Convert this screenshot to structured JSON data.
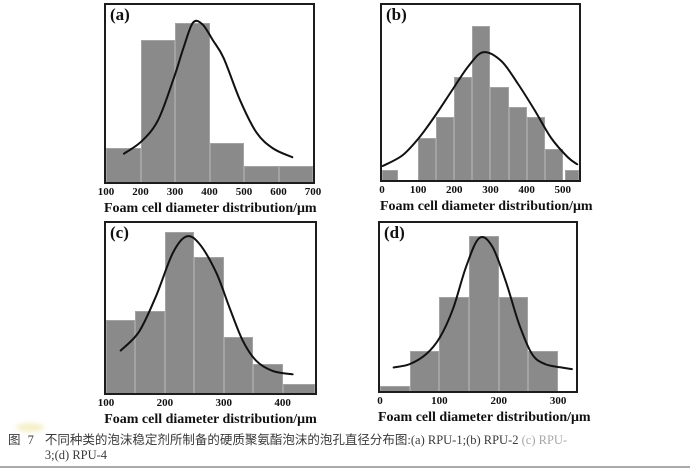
{
  "figure": {
    "background": "#ffffff",
    "bar_color": "#8a8a8a",
    "bar_edge_color": "#a3a3a3",
    "curve_color": "#111111",
    "frame_color": "#1c1c1c"
  },
  "caption": {
    "prefix": "图 7",
    "line1": "不同种类的泡沫稳定剂所制备的硬质聚氨酯泡沫的泡孔直径分布图:(a) RPU-1;(b) RPU-2",
    "line1_faded": "(c) RPU-",
    "line2": "3;(d) RPU-4"
  },
  "chart_data": [
    {
      "type": "bar",
      "label": "(a)",
      "sample": "RPU-1",
      "title": "",
      "xlabel": "Foam cell diameter distribution/μm",
      "ylabel": "",
      "xlim": [
        100,
        700
      ],
      "xticks": [
        100,
        200,
        300,
        400,
        500,
        600,
        700
      ],
      "ylim": [
        0,
        1
      ],
      "y_axis_shown": false,
      "grid": false,
      "bars": [
        {
          "x0": 100,
          "x1": 200,
          "h": 0.19
        },
        {
          "x0": 200,
          "x1": 300,
          "h": 0.8
        },
        {
          "x0": 300,
          "x1": 400,
          "h": 0.9
        },
        {
          "x0": 400,
          "x1": 500,
          "h": 0.22
        },
        {
          "x0": 500,
          "x1": 600,
          "h": 0.09
        },
        {
          "x0": 600,
          "x1": 700,
          "h": 0.09
        }
      ],
      "curve": [
        [
          152,
          0.16
        ],
        [
          203,
          0.23
        ],
        [
          251,
          0.35
        ],
        [
          297,
          0.59
        ],
        [
          325,
          0.76
        ],
        [
          352,
          0.9
        ],
        [
          380,
          0.89
        ],
        [
          410,
          0.8
        ],
        [
          441,
          0.7
        ],
        [
          489,
          0.46
        ],
        [
          536,
          0.28
        ],
        [
          584,
          0.19
        ],
        [
          640,
          0.14
        ]
      ]
    },
    {
      "type": "bar",
      "label": "(b)",
      "sample": "RPU-2",
      "title": "",
      "xlabel": "Foam cell diameter distribution/μm",
      "ylabel": "",
      "xlim": [
        0,
        545
      ],
      "xticks": [
        0,
        100,
        200,
        300,
        400,
        500
      ],
      "ylim": [
        0,
        1
      ],
      "y_axis_shown": false,
      "grid": false,
      "bars": [
        {
          "x0": 0,
          "x1": 45,
          "h": 0.06
        },
        {
          "x0": 100,
          "x1": 150,
          "h": 0.24
        },
        {
          "x0": 150,
          "x1": 200,
          "h": 0.36
        },
        {
          "x0": 200,
          "x1": 250,
          "h": 0.59
        },
        {
          "x0": 250,
          "x1": 300,
          "h": 0.88
        },
        {
          "x0": 300,
          "x1": 350,
          "h": 0.53
        },
        {
          "x0": 350,
          "x1": 400,
          "h": 0.42
        },
        {
          "x0": 400,
          "x1": 450,
          "h": 0.36
        },
        {
          "x0": 450,
          "x1": 500,
          "h": 0.18
        },
        {
          "x0": 505,
          "x1": 545,
          "h": 0.06
        }
      ],
      "curve": [
        [
          2,
          0.08
        ],
        [
          56,
          0.14
        ],
        [
          102,
          0.24
        ],
        [
          148,
          0.37
        ],
        [
          193,
          0.51
        ],
        [
          239,
          0.65
        ],
        [
          280,
          0.73
        ],
        [
          330,
          0.68
        ],
        [
          376,
          0.55
        ],
        [
          422,
          0.4
        ],
        [
          468,
          0.24
        ],
        [
          514,
          0.13
        ],
        [
          540,
          0.09
        ]
      ]
    },
    {
      "type": "bar",
      "label": "(c)",
      "sample": "RPU-3",
      "title": "",
      "xlabel": "Foam cell diameter distribution/μm",
      "ylabel": "",
      "xlim": [
        100,
        455
      ],
      "xticks": [
        100,
        200,
        300,
        400
      ],
      "ylim": [
        0,
        1
      ],
      "y_axis_shown": false,
      "grid": false,
      "bars": [
        {
          "x0": 100,
          "x1": 150,
          "h": 0.43
        },
        {
          "x0": 150,
          "x1": 200,
          "h": 0.48
        },
        {
          "x0": 200,
          "x1": 250,
          "h": 0.95
        },
        {
          "x0": 250,
          "x1": 300,
          "h": 0.8
        },
        {
          "x0": 300,
          "x1": 350,
          "h": 0.33
        },
        {
          "x0": 350,
          "x1": 400,
          "h": 0.17
        },
        {
          "x0": 400,
          "x1": 455,
          "h": 0.055
        }
      ],
      "curve": [
        [
          125,
          0.25
        ],
        [
          156,
          0.36
        ],
        [
          185,
          0.57
        ],
        [
          213,
          0.82
        ],
        [
          236,
          0.92
        ],
        [
          258,
          0.88
        ],
        [
          287,
          0.71
        ],
        [
          310,
          0.5
        ],
        [
          332,
          0.31
        ],
        [
          355,
          0.19
        ],
        [
          383,
          0.13
        ],
        [
          417,
          0.11
        ]
      ]
    },
    {
      "type": "bar",
      "label": "(d)",
      "sample": "RPU-4",
      "title": "",
      "xlabel": "Foam cell diameter distribution/μm",
      "ylabel": "",
      "xlim": [
        0,
        330
      ],
      "xticks": [
        0,
        100,
        200,
        300
      ],
      "ylim": [
        0,
        1
      ],
      "y_axis_shown": false,
      "grid": false,
      "bars": [
        {
          "x0": 0,
          "x1": 50,
          "h": 0.03
        },
        {
          "x0": 50,
          "x1": 100,
          "h": 0.24
        },
        {
          "x0": 100,
          "x1": 150,
          "h": 0.56
        },
        {
          "x0": 150,
          "x1": 200,
          "h": 0.92
        },
        {
          "x0": 200,
          "x1": 250,
          "h": 0.56
        },
        {
          "x0": 250,
          "x1": 300,
          "h": 0.24
        }
      ],
      "curve": [
        [
          23,
          0.14
        ],
        [
          50,
          0.16
        ],
        [
          78,
          0.22
        ],
        [
          101,
          0.32
        ],
        [
          123,
          0.49
        ],
        [
          145,
          0.74
        ],
        [
          167,
          0.91
        ],
        [
          189,
          0.86
        ],
        [
          212,
          0.65
        ],
        [
          234,
          0.4
        ],
        [
          256,
          0.22
        ],
        [
          278,
          0.16
        ],
        [
          306,
          0.14
        ],
        [
          323,
          0.13
        ]
      ]
    }
  ]
}
